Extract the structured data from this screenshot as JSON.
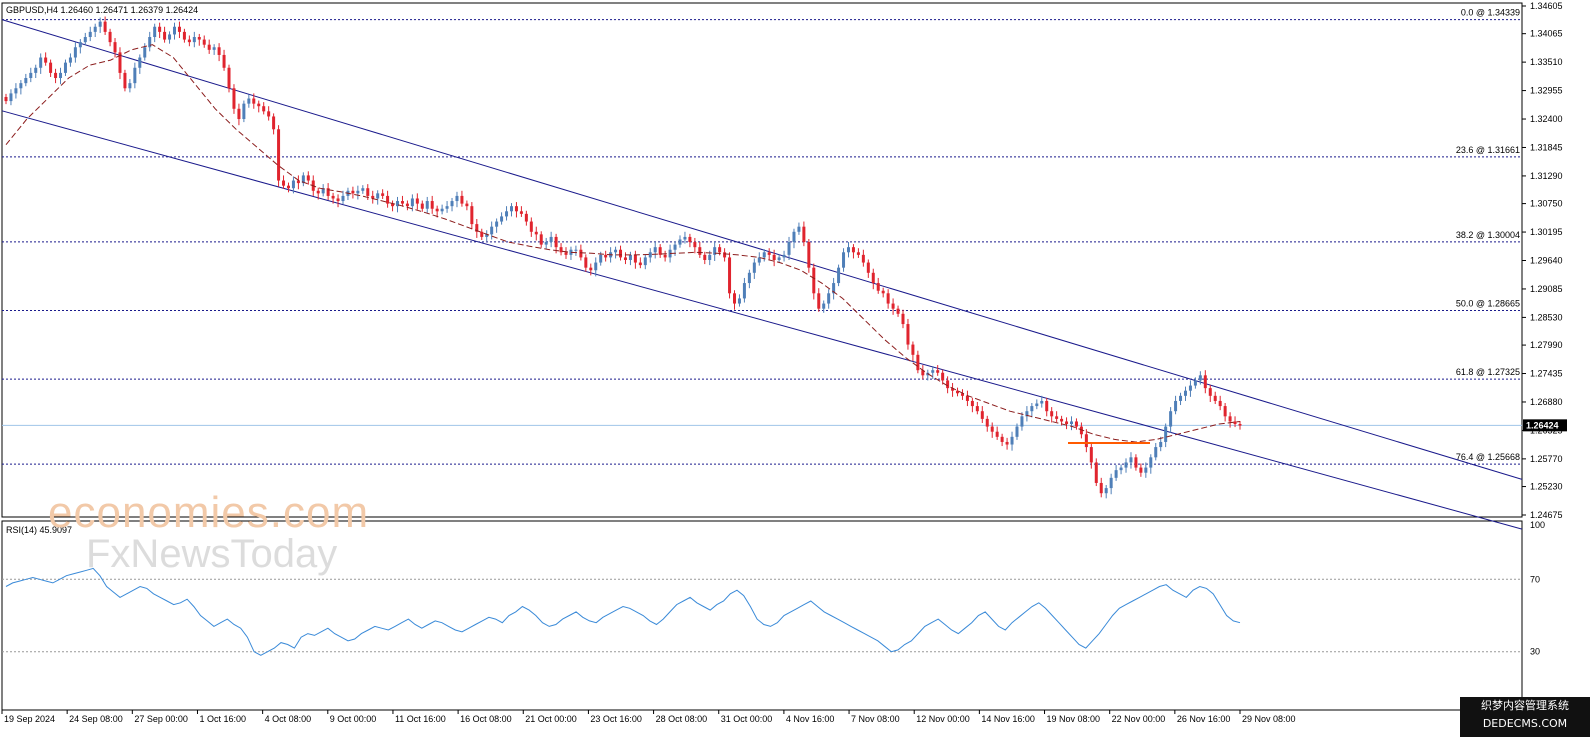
{
  "header": {
    "symbol_line": "GBPUSD,H4  1.26460 1.26471 1.26379 1.26424"
  },
  "watermark": {
    "line1": "economies.com",
    "line2": "FxNewsToday"
  },
  "corner_badge": {
    "line1": "织梦内容管理系统",
    "line2": "DEDECMS.COM"
  },
  "colors": {
    "bull": "#4f7fb8",
    "bear": "#e0242e",
    "ma": "#8b1c1c",
    "channel": "#1a1a8c",
    "fib": "#1a1a8c",
    "rsi": "#3a8ad8",
    "current_line": "#9fc5e8",
    "range_box": "#ff5a00"
  },
  "chart_data": [
    {
      "type": "candlestick",
      "title": "GBPUSD,H4",
      "ohlc_last": {
        "open": 1.2646,
        "high": 1.26471,
        "low": 1.26379,
        "close": 1.26424
      },
      "ylim": [
        1.24675,
        1.34605
      ],
      "y_ticks": [
        "1.34605",
        "1.34065",
        "1.33510",
        "1.32955",
        "1.32400",
        "1.31845",
        "1.31290",
        "1.30750",
        "1.30195",
        "1.29640",
        "1.29085",
        "1.28530",
        "1.27990",
        "1.27435",
        "1.26880",
        "1.26325",
        "1.25770",
        "1.25230",
        "1.24675"
      ],
      "current_price_label": "1.26424",
      "x_ticks": [
        "19 Sep 2024",
        "24 Sep 08:00",
        "27 Sep 00:00",
        "1 Oct 16:00",
        "4 Oct 08:00",
        "9 Oct 00:00",
        "11 Oct 16:00",
        "16 Oct 08:00",
        "21 Oct 00:00",
        "23 Oct 16:00",
        "28 Oct 08:00",
        "31 Oct 00:00",
        "4 Nov 16:00",
        "7 Nov 08:00",
        "12 Nov 00:00",
        "14 Nov 16:00",
        "19 Nov 08:00",
        "22 Nov 00:00",
        "26 Nov 16:00",
        "29 Nov 08:00"
      ],
      "fibonacci": [
        {
          "label": "0.0 @ 1.34339",
          "price": 1.34339
        },
        {
          "label": "23.6 @ 1.31661",
          "price": 1.31661
        },
        {
          "label": "38.2 @ 1.30004",
          "price": 1.30004
        },
        {
          "label": "50.0 @ 1.28665",
          "price": 1.28665
        },
        {
          "label": "61.8 @ 1.27325",
          "price": 1.27325
        },
        {
          "label": "76.4 @ 1.25668",
          "price": 1.25668
        }
      ],
      "series_close": [
        1.3275,
        1.329,
        1.33,
        1.331,
        1.332,
        1.333,
        1.334,
        1.336,
        1.335,
        1.333,
        1.332,
        1.333,
        1.335,
        1.336,
        1.338,
        1.339,
        1.34,
        1.341,
        1.342,
        1.343,
        1.341,
        1.339,
        1.337,
        1.333,
        1.33,
        1.331,
        1.334,
        1.336,
        1.338,
        1.34,
        1.342,
        1.341,
        1.3395,
        1.3405,
        1.342,
        1.341,
        1.3395,
        1.339,
        1.34,
        1.3395,
        1.3385,
        1.3375,
        1.338,
        1.3365,
        1.334,
        1.33,
        1.326,
        1.324,
        1.327,
        1.328,
        1.327,
        1.3265,
        1.3255,
        1.3245,
        1.322,
        1.312,
        1.311,
        1.3105,
        1.312,
        1.3115,
        1.313,
        1.312,
        1.31,
        1.3095,
        1.3105,
        1.309,
        1.3085,
        1.308,
        1.309,
        1.31,
        1.3095,
        1.31,
        1.3105,
        1.309,
        1.3085,
        1.3095,
        1.309,
        1.3075,
        1.307,
        1.308,
        1.3075,
        1.307,
        1.3085,
        1.3075,
        1.3065,
        1.308,
        1.3065,
        1.306,
        1.3065,
        1.307,
        1.308,
        1.309,
        1.3075,
        1.307,
        1.3035,
        1.302,
        1.301,
        1.3015,
        1.303,
        1.304,
        1.305,
        1.306,
        1.307,
        1.306,
        1.3055,
        1.304,
        1.302,
        1.3015,
        1.2995,
        1.3,
        1.301,
        1.299,
        1.298,
        1.2975,
        1.2985,
        1.2985,
        1.297,
        1.295,
        1.2945,
        1.296,
        1.2975,
        1.297,
        1.298,
        1.2985,
        1.297,
        1.2965,
        1.2975,
        1.296,
        1.2955,
        1.297,
        1.298,
        1.299,
        1.2975,
        1.297,
        1.2985,
        1.2995,
        1.3005,
        1.301,
        1.3,
        1.299,
        1.2975,
        1.2965,
        1.2975,
        1.299,
        1.298,
        1.297,
        1.29,
        1.288,
        1.289,
        1.292,
        1.294,
        1.296,
        1.297,
        1.298,
        1.2975,
        1.2965,
        1.297,
        1.2975,
        1.3,
        1.302,
        1.303,
        1.3,
        1.295,
        1.29,
        1.287,
        1.288,
        1.29,
        1.292,
        1.295,
        1.298,
        1.299,
        1.298,
        1.2975,
        1.296,
        1.294,
        1.292,
        1.2905,
        1.29,
        1.288,
        1.287,
        1.286,
        1.284,
        1.28,
        1.278,
        1.275,
        1.274,
        1.2745,
        1.275,
        1.2745,
        1.273,
        1.2715,
        1.271,
        1.2705,
        1.27,
        1.269,
        1.268,
        1.267,
        1.2655,
        1.264,
        1.263,
        1.262,
        1.261,
        1.2605,
        1.262,
        1.264,
        1.266,
        1.267,
        1.268,
        1.2685,
        1.269,
        1.267,
        1.266,
        1.2655,
        1.265,
        1.2645,
        1.265,
        1.264,
        1.2625,
        1.26,
        1.257,
        1.253,
        1.251,
        1.252,
        1.254,
        1.2555,
        1.256,
        1.257,
        1.258,
        1.256,
        1.255,
        1.256,
        1.258,
        1.26,
        1.261,
        1.264,
        1.267,
        1.269,
        1.27,
        1.271,
        1.272,
        1.273,
        1.274,
        1.2715,
        1.27,
        1.269,
        1.268,
        1.266,
        1.265,
        1.2645,
        1.2642
      ],
      "ma_series": [
        1.319,
        1.324,
        1.328,
        1.332,
        1.3345,
        1.3355,
        1.3375,
        1.3385,
        1.336,
        1.331,
        1.326,
        1.322,
        1.3185,
        1.315,
        1.312,
        1.3105,
        1.3098,
        1.309,
        1.308,
        1.307,
        1.3058,
        1.3045,
        1.303,
        1.3015,
        1.3,
        1.2992,
        1.2985,
        1.298,
        1.2978,
        1.2975,
        1.2975,
        1.2976,
        1.2978,
        1.298,
        1.2978,
        1.2975,
        1.297,
        1.296,
        1.2945,
        1.292,
        1.289,
        1.285,
        1.281,
        1.2775,
        1.2745,
        1.272,
        1.27,
        1.2685,
        1.267,
        1.266,
        1.265,
        1.264,
        1.2625,
        1.2615,
        1.261,
        1.2615,
        1.2625,
        1.2635,
        1.2645,
        1.265
      ],
      "channel_upper": {
        "start": [
          1.34339,
          0
        ],
        "end": [
          1.2537,
          1
        ]
      },
      "channel_lower": {
        "start": [
          1.3256,
          0
        ],
        "end": [
          1.244,
          1
        ]
      },
      "range_box_price": 1.2608
    },
    {
      "type": "line",
      "title": "RSI(14) 45.9097",
      "ylim": [
        0,
        100
      ],
      "y_ticks": [
        "100",
        "70",
        "30"
      ],
      "levels": [
        70,
        30
      ],
      "values": [
        66,
        68,
        69,
        70,
        71,
        70,
        69,
        68,
        70,
        72,
        73,
        74,
        75,
        76,
        72,
        66,
        63,
        60,
        62,
        64,
        66,
        65,
        62,
        60,
        58,
        56,
        57,
        59,
        55,
        50,
        47,
        44,
        46,
        48,
        45,
        43,
        38,
        30,
        28,
        30,
        32,
        35,
        34,
        32,
        38,
        40,
        39,
        41,
        43,
        40,
        38,
        36,
        37,
        40,
        42,
        44,
        43,
        42,
        44,
        46,
        48,
        45,
        43,
        45,
        47,
        46,
        44,
        42,
        41,
        43,
        45,
        47,
        49,
        48,
        46,
        50,
        52,
        55,
        53,
        50,
        46,
        44,
        45,
        48,
        50,
        52,
        49,
        47,
        46,
        49,
        51,
        53,
        55,
        54,
        52,
        50,
        47,
        45,
        48,
        52,
        56,
        58,
        60,
        57,
        55,
        53,
        56,
        58,
        62,
        64,
        61,
        55,
        48,
        45,
        44,
        46,
        50,
        52,
        54,
        56,
        58,
        55,
        52,
        50,
        48,
        46,
        44,
        42,
        40,
        38,
        36,
        33,
        30,
        31,
        34,
        36,
        40,
        44,
        46,
        48,
        45,
        42,
        40,
        43,
        46,
        50,
        52,
        48,
        44,
        42,
        46,
        49,
        52,
        55,
        57,
        54,
        50,
        46,
        42,
        38,
        34,
        32,
        36,
        40,
        45,
        50,
        54,
        56,
        58,
        60,
        62,
        64,
        66,
        67,
        64,
        62,
        60,
        64,
        66,
        65,
        62,
        56,
        50,
        47,
        46
      ]
    }
  ]
}
